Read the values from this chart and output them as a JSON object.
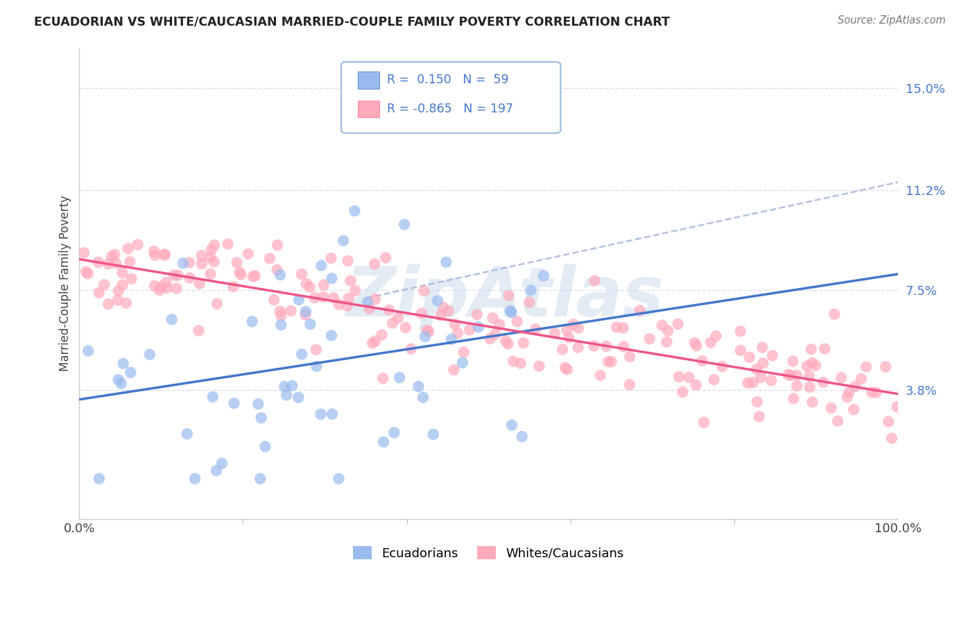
{
  "title": "ECUADORIAN VS WHITE/CAUCASIAN MARRIED-COUPLE FAMILY POVERTY CORRELATION CHART",
  "source": "Source: ZipAtlas.com",
  "ylabel": "Married-Couple Family Poverty",
  "xlim": [
    0,
    100
  ],
  "ylim": [
    -1,
    16.5
  ],
  "ytick_positions": [
    3.8,
    7.5,
    11.2,
    15.0
  ],
  "ytick_labels": [
    "3.8%",
    "7.5%",
    "11.2%",
    "15.0%"
  ],
  "xtick_positions": [
    0,
    100
  ],
  "xtick_labels": [
    "0.0%",
    "100.0%"
  ],
  "blue_R": 0.15,
  "blue_N": 59,
  "pink_R": -0.865,
  "pink_N": 197,
  "blue_color": "#99BBEE",
  "pink_color": "#FFAABB",
  "blue_line_color": "#4477CC",
  "pink_line_color": "#EE5588",
  "dash_color": "#AABBDD",
  "legend_label_blue": "Ecuadorians",
  "legend_label_pink": "Whites/Caucasians",
  "background_color": "#FFFFFF",
  "grid_color": "#DDDDEE",
  "watermark_text": "ZipAtlas",
  "watermark_color": "#CCDDEE",
  "title_color": "#222222",
  "ytick_color": "#4477CC",
  "source_color": "#777777"
}
